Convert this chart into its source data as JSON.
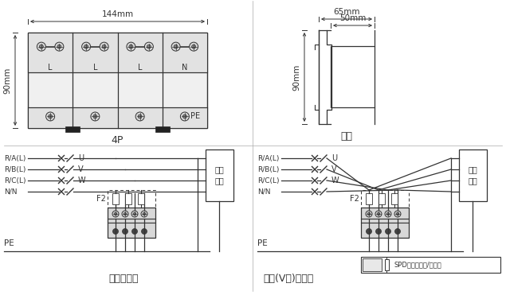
{
  "bg_color": "#ffffff",
  "line_color": "#333333",
  "dim_144": "144mm",
  "dim_90": "90mm",
  "dim_65": "65mm",
  "dim_50": "50mm",
  "label_4P": "4P",
  "label_side": "側面",
  "label_single": "单线接线法",
  "label_kawen": "凯文(V型)接线法",
  "label_elec": "电器\n设备",
  "label_PE": "PE",
  "label_F2": "F2",
  "label_RA": "R/A(L)",
  "label_RB": "R/B(L)",
  "label_RC": "R/C(L)",
  "label_NN": "N/N",
  "label_L": "L",
  "label_N": "N",
  "label_U": "U",
  "label_V": "V",
  "label_W": "W",
  "spd_desc": "SPD备备保护器/断路器"
}
